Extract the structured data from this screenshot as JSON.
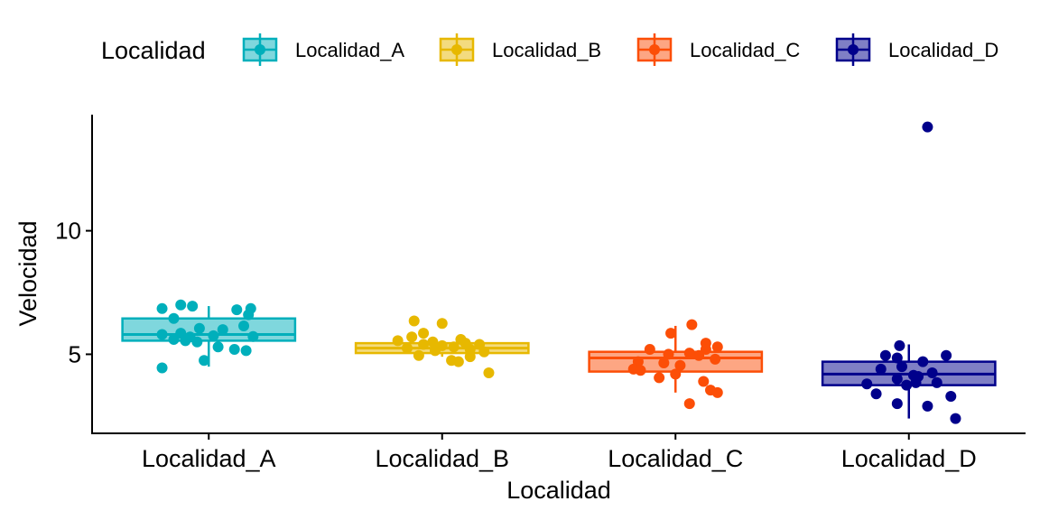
{
  "chart_data": {
    "type": "boxplot",
    "xlabel": "Localidad",
    "ylabel": "Velocidad",
    "ylim": [
      1.8,
      14.7
    ],
    "yticks": [
      5,
      10
    ],
    "legend": {
      "title": "Localidad",
      "position": "top",
      "entries": [
        "Localidad_A",
        "Localidad_B",
        "Localidad_C",
        "Localidad_D"
      ]
    },
    "categories": [
      "Localidad_A",
      "Localidad_B",
      "Localidad_C",
      "Localidad_D"
    ],
    "series": [
      {
        "name": "Localidad_A",
        "color": "#00AFBB",
        "box": {
          "whisker_low": 4.5,
          "q1": 5.55,
          "median": 5.8,
          "q3": 6.45,
          "whisker_high": 6.95
        },
        "points": [
          [
            -0.2,
            6.85
          ],
          [
            -0.12,
            7.0
          ],
          [
            -0.07,
            6.95
          ],
          [
            -0.15,
            6.45
          ],
          [
            0.12,
            6.8
          ],
          [
            0.18,
            6.85
          ],
          [
            0.17,
            6.6
          ],
          [
            -0.04,
            6.05
          ],
          [
            0.06,
            6.0
          ],
          [
            0.15,
            6.15
          ],
          [
            -0.12,
            5.85
          ],
          [
            -0.2,
            5.8
          ],
          [
            0.02,
            5.75
          ],
          [
            -0.08,
            5.7
          ],
          [
            0.19,
            5.72
          ],
          [
            -0.15,
            5.6
          ],
          [
            -0.1,
            5.55
          ],
          [
            -0.05,
            5.5
          ],
          [
            0.11,
            5.2
          ],
          [
            0.16,
            5.15
          ],
          [
            0.04,
            5.3
          ],
          [
            -0.02,
            4.75
          ],
          [
            -0.2,
            4.45
          ]
        ]
      },
      {
        "name": "Localidad_B",
        "color": "#E7B800",
        "box": {
          "whisker_low": 4.9,
          "q1": 5.05,
          "median": 5.25,
          "q3": 5.45,
          "whisker_high": 5.55
        },
        "points": [
          [
            -0.12,
            6.35
          ],
          [
            0.0,
            6.25
          ],
          [
            -0.08,
            5.85
          ],
          [
            -0.13,
            5.7
          ],
          [
            0.08,
            5.6
          ],
          [
            -0.19,
            5.55
          ],
          [
            -0.04,
            5.5
          ],
          [
            0.1,
            5.45
          ],
          [
            0.16,
            5.4
          ],
          [
            -0.08,
            5.4
          ],
          [
            0.0,
            5.35
          ],
          [
            0.05,
            5.3
          ],
          [
            -0.15,
            5.25
          ],
          [
            0.12,
            5.2
          ],
          [
            -0.03,
            5.15
          ],
          [
            0.18,
            5.1
          ],
          [
            -0.1,
            4.95
          ],
          [
            0.12,
            4.9
          ],
          [
            0.04,
            4.75
          ],
          [
            0.07,
            4.7
          ],
          [
            0.2,
            4.25
          ]
        ]
      },
      {
        "name": "Localidad_C",
        "color": "#FC4E07",
        "box": {
          "whisker_low": 3.45,
          "q1": 4.3,
          "median": 4.85,
          "q3": 5.1,
          "whisker_high": 6.15
        },
        "points": [
          [
            0.07,
            6.2
          ],
          [
            -0.02,
            5.85
          ],
          [
            0.13,
            5.45
          ],
          [
            0.18,
            5.3
          ],
          [
            0.13,
            5.2
          ],
          [
            -0.11,
            5.2
          ],
          [
            0.06,
            5.05
          ],
          [
            -0.03,
            5.0
          ],
          [
            0.1,
            4.95
          ],
          [
            -0.16,
            4.7
          ],
          [
            0.17,
            4.8
          ],
          [
            -0.05,
            4.65
          ],
          [
            0.02,
            4.55
          ],
          [
            -0.18,
            4.4
          ],
          [
            -0.15,
            4.35
          ],
          [
            0.0,
            4.2
          ],
          [
            -0.07,
            4.05
          ],
          [
            0.12,
            3.9
          ],
          [
            0.15,
            3.55
          ],
          [
            0.18,
            3.45
          ],
          [
            0.06,
            3.0
          ]
        ]
      },
      {
        "name": "Localidad_D",
        "color": "#00008B",
        "box": {
          "whisker_low": 2.4,
          "q1": 3.75,
          "median": 4.2,
          "q3": 4.7,
          "whisker_high": 5.4
        },
        "points": [
          [
            0.08,
            14.2
          ],
          [
            -0.04,
            5.35
          ],
          [
            -0.1,
            4.95
          ],
          [
            0.16,
            4.95
          ],
          [
            -0.05,
            4.85
          ],
          [
            0.06,
            4.7
          ],
          [
            -0.12,
            4.4
          ],
          [
            -0.03,
            4.5
          ],
          [
            0.1,
            4.25
          ],
          [
            0.04,
            4.1
          ],
          [
            0.02,
            4.15
          ],
          [
            -0.05,
            4.0
          ],
          [
            0.12,
            3.85
          ],
          [
            -0.18,
            3.8
          ],
          [
            -0.01,
            3.75
          ],
          [
            0.03,
            3.85
          ],
          [
            -0.14,
            3.4
          ],
          [
            0.18,
            3.3
          ],
          [
            -0.05,
            3.0
          ],
          [
            0.08,
            2.9
          ],
          [
            0.2,
            2.4
          ]
        ]
      }
    ]
  }
}
